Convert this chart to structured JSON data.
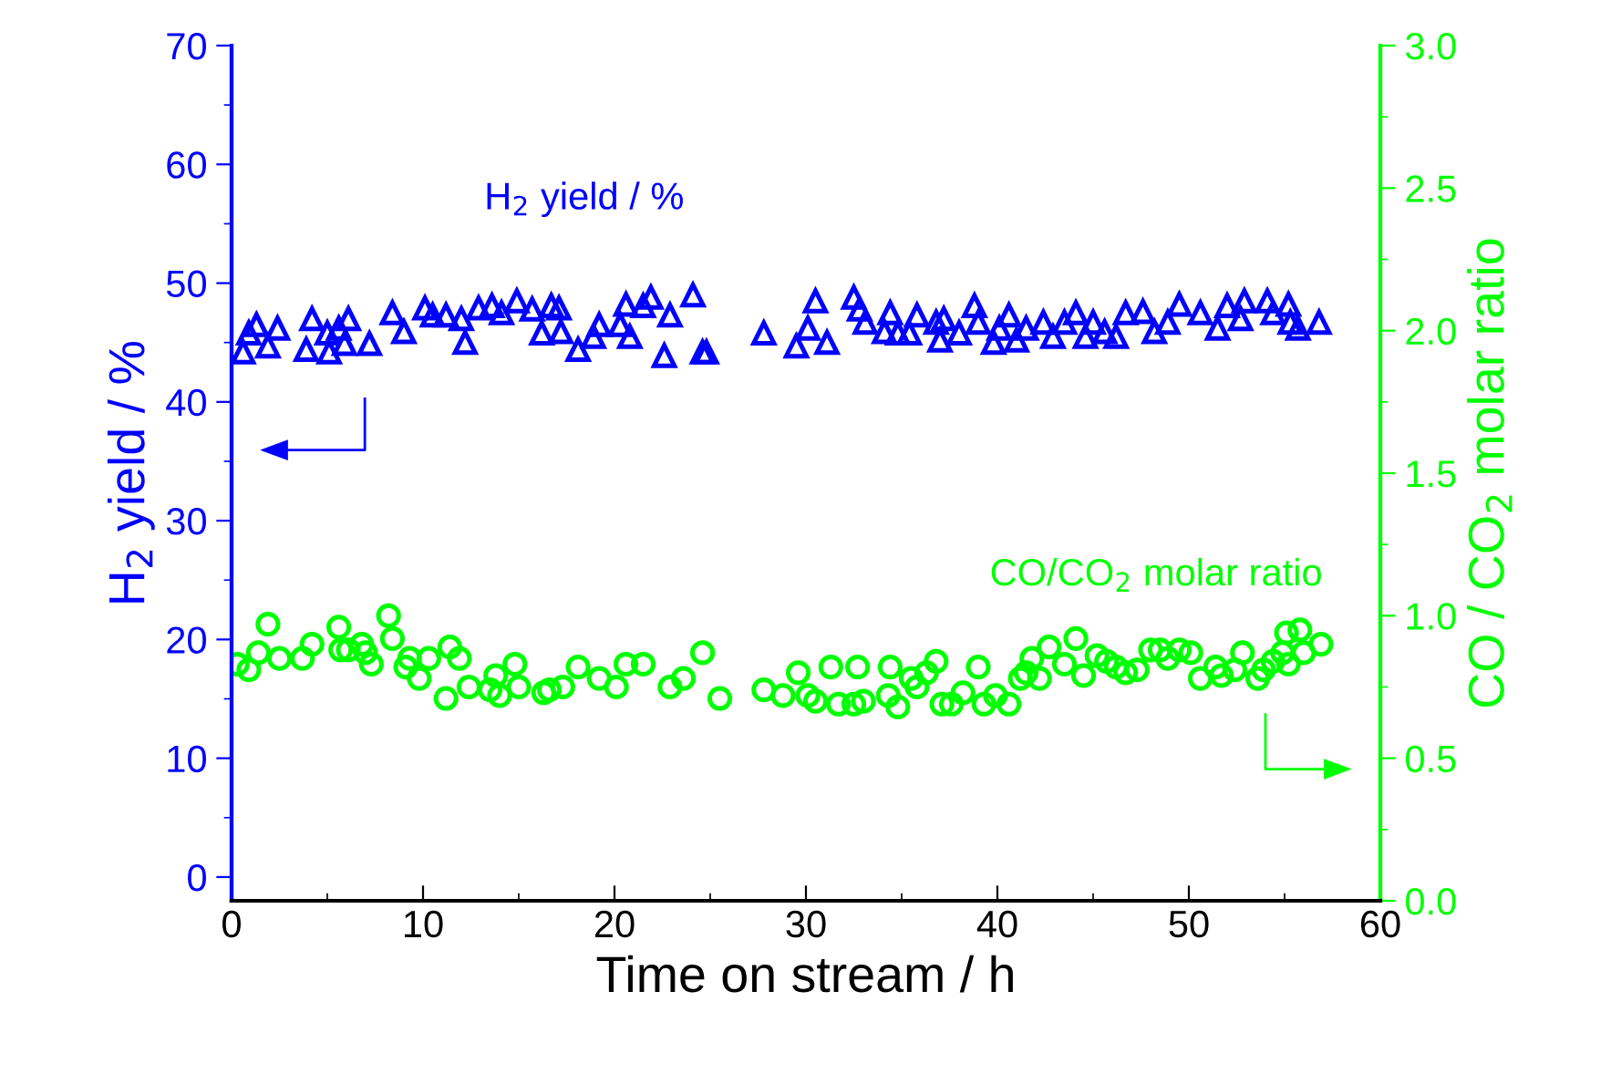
{
  "chart_data": {
    "type": "scatter",
    "xlabel": "Time on stream / h",
    "ylabel": "H$_{2}$ yield / %",
    "y2label": "CO / CO$_{2}$ molar ratio",
    "xlim": [
      0,
      60
    ],
    "xticks": [
      0,
      10,
      20,
      30,
      40,
      50,
      60
    ],
    "ylim": [
      -2,
      70
    ],
    "yticks": [
      0,
      10,
      20,
      30,
      40,
      50,
      60,
      70
    ],
    "y2lim": [
      0,
      3
    ],
    "y2ticks": [
      {
        "value": 0,
        "label": "0.0"
      },
      {
        "value": 0.5,
        "label": "0.5"
      },
      {
        "value": 1,
        "label": "1.0"
      },
      {
        "value": 1.5,
        "label": "1.5"
      },
      {
        "value": 2,
        "label": "2.0"
      },
      {
        "value": 2.5,
        "label": "2.5"
      },
      {
        "value": 3,
        "label": "3.0"
      }
    ],
    "grid": false,
    "legend": false,
    "series": [
      {
        "name": "H$_{2}$ yield / %",
        "color": "#0000ff",
        "marker": "triangle",
        "axis": "y",
        "x": [
          0.6,
          0.9,
          1.3,
          1.9,
          2.4,
          3.9,
          4.2,
          5.0,
          5.1,
          5.6,
          5.9,
          6.1,
          7.2,
          8.4,
          9.0,
          10.1,
          10.5,
          11.2,
          12.0,
          12.2,
          12.9,
          13.6,
          14.1,
          14.9,
          15.7,
          16.2,
          16.7,
          17.1,
          17.2,
          18.1,
          18.9,
          19.2,
          20.3,
          20.6,
          20.8,
          21.5,
          21.9,
          22.9,
          22.6,
          24.1,
          24.6,
          24.8,
          27.8,
          29.5,
          30.1,
          30.5,
          31.1,
          32.5,
          32.8,
          33.1,
          34.4,
          34.1,
          34.8,
          35.4,
          35.8,
          36.8,
          37.0,
          37.2,
          38.0,
          38.8,
          39.0,
          39.8,
          40.1,
          40.6,
          41.0,
          41.5,
          42.4,
          42.9,
          43.5,
          44.1,
          44.6,
          45.0,
          45.6,
          46.2,
          46.7,
          47.6,
          48.2,
          48.9,
          49.5,
          50.6,
          51.5,
          52.0,
          52.9,
          52.7,
          54.1,
          54.4,
          55.2,
          55.3,
          55.7,
          56.8
        ],
        "values": [
          44.2,
          45.8,
          46.5,
          44.7,
          46.2,
          44.4,
          47.0,
          45.8,
          44.2,
          46.2,
          44.9,
          47.0,
          44.9,
          47.5,
          45.9,
          47.9,
          47.3,
          47.3,
          47.0,
          45.0,
          47.9,
          48.1,
          47.5,
          48.5,
          47.8,
          45.8,
          48.1,
          47.9,
          45.9,
          44.4,
          45.5,
          46.5,
          46.5,
          48.2,
          45.5,
          48.1,
          48.8,
          47.3,
          43.9,
          49.0,
          44.2,
          44.2,
          45.8,
          44.7,
          46.2,
          48.5,
          45.0,
          48.8,
          47.8,
          46.7,
          47.5,
          45.9,
          45.8,
          45.8,
          47.3,
          46.7,
          45.2,
          47.0,
          45.8,
          48.1,
          46.7,
          45.0,
          46.2,
          47.3,
          45.2,
          46.2,
          46.7,
          45.5,
          46.7,
          47.5,
          45.5,
          46.7,
          45.9,
          45.5,
          47.5,
          47.6,
          45.9,
          46.7,
          48.2,
          47.5,
          46.2,
          48.1,
          48.5,
          47.0,
          48.5,
          47.5,
          48.2,
          46.7,
          46.2,
          46.7
        ]
      },
      {
        "name": "CO/CO$_{2}$ molar ratio",
        "color": "#00ff00",
        "marker": "circle",
        "axis": "y2",
        "x": [
          0.3,
          0.9,
          1.4,
          1.9,
          2.5,
          3.7,
          4.2,
          5.6,
          5.7,
          6.1,
          6.8,
          7.0,
          7.3,
          8.2,
          8.4,
          9.1,
          9.3,
          9.8,
          10.3,
          11.2,
          11.4,
          11.9,
          12.4,
          13.5,
          13.8,
          14.0,
          14.8,
          15.0,
          16.3,
          16.6,
          17.3,
          18.1,
          19.2,
          20.1,
          20.6,
          21.5,
          22.9,
          23.6,
          24.6,
          25.5,
          27.8,
          28.8,
          29.6,
          30.1,
          30.5,
          31.3,
          31.7,
          32.7,
          32.5,
          33.0,
          34.3,
          34.4,
          34.8,
          35.5,
          35.8,
          36.3,
          36.8,
          37.1,
          37.6,
          38.2,
          39.0,
          39.3,
          39.9,
          40.6,
          41.2,
          41.5,
          41.8,
          42.2,
          42.7,
          43.5,
          44.1,
          44.5,
          45.2,
          45.7,
          46.2,
          46.7,
          47.3,
          48.0,
          48.5,
          48.9,
          49.5,
          50.1,
          50.6,
          51.4,
          51.7,
          52.4,
          52.8,
          53.6,
          53.9,
          54.4,
          54.9,
          55.1,
          55.2,
          55.8,
          56.0,
          56.9
        ],
        "values": [
          0.83,
          0.81,
          0.87,
          0.97,
          0.85,
          0.85,
          0.9,
          0.96,
          0.88,
          0.88,
          0.9,
          0.87,
          0.83,
          1.0,
          0.92,
          0.82,
          0.85,
          0.78,
          0.85,
          0.71,
          0.89,
          0.85,
          0.75,
          0.74,
          0.79,
          0.72,
          0.83,
          0.75,
          0.73,
          0.74,
          0.75,
          0.82,
          0.78,
          0.75,
          0.83,
          0.83,
          0.75,
          0.78,
          0.87,
          0.71,
          0.74,
          0.72,
          0.8,
          0.72,
          0.7,
          0.82,
          0.69,
          0.82,
          0.69,
          0.7,
          0.72,
          0.82,
          0.68,
          0.78,
          0.75,
          0.8,
          0.84,
          0.69,
          0.69,
          0.73,
          0.82,
          0.69,
          0.72,
          0.69,
          0.78,
          0.8,
          0.85,
          0.78,
          0.89,
          0.83,
          0.92,
          0.79,
          0.86,
          0.84,
          0.82,
          0.8,
          0.81,
          0.88,
          0.88,
          0.85,
          0.88,
          0.87,
          0.78,
          0.82,
          0.79,
          0.81,
          0.87,
          0.78,
          0.81,
          0.84,
          0.87,
          0.94,
          0.83,
          0.95,
          0.87,
          0.9
        ]
      }
    ]
  }
}
